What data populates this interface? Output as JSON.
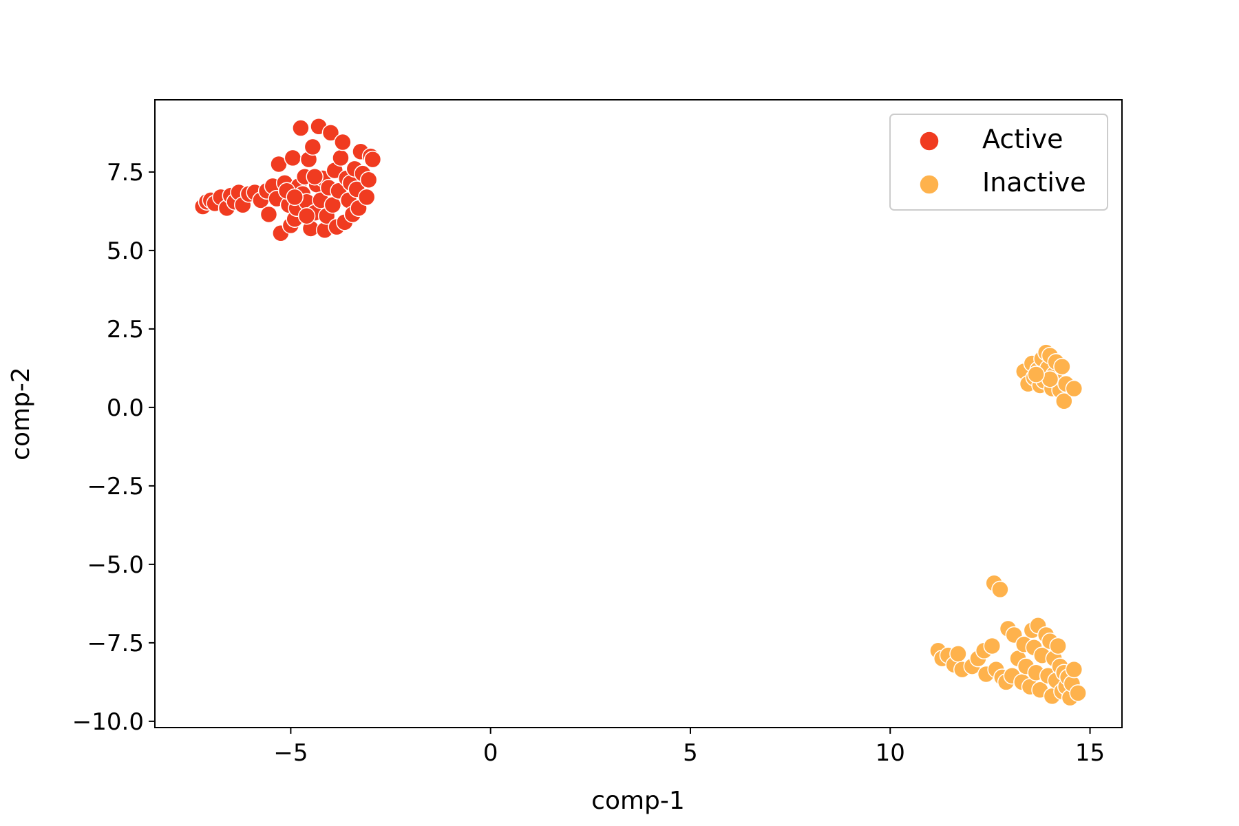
{
  "chart_data": {
    "type": "scatter",
    "title": "",
    "xlabel": "comp-1",
    "ylabel": "comp-2",
    "xlim": [
      -8.4,
      15.8
    ],
    "ylim": [
      -10.2,
      9.8
    ],
    "xticks": [
      -5,
      0,
      5,
      10,
      15
    ],
    "xtick_labels": [
      "−5",
      "0",
      "5",
      "10",
      "15"
    ],
    "yticks": [
      -10.0,
      -7.5,
      -5.0,
      -2.5,
      0.0,
      2.5,
      5.0,
      7.5
    ],
    "ytick_labels": [
      "−10.0",
      "−7.5",
      "−5.0",
      "−2.5",
      "0.0",
      "2.5",
      "5.0",
      "7.5"
    ],
    "grid": false,
    "legend_position": "top-right",
    "series": [
      {
        "name": "Active",
        "color": "#f03b20",
        "points": [
          [
            -7.2,
            6.4
          ],
          [
            -7.1,
            6.55
          ],
          [
            -7.0,
            6.6
          ],
          [
            -6.9,
            6.5
          ],
          [
            -6.75,
            6.7
          ],
          [
            -6.6,
            6.35
          ],
          [
            -6.5,
            6.75
          ],
          [
            -6.4,
            6.55
          ],
          [
            -6.3,
            6.85
          ],
          [
            -6.2,
            6.45
          ],
          [
            -6.05,
            6.8
          ],
          [
            -5.9,
            6.85
          ],
          [
            -5.75,
            6.6
          ],
          [
            -5.6,
            6.9
          ],
          [
            -5.55,
            6.15
          ],
          [
            -5.45,
            7.05
          ],
          [
            -5.35,
            6.65
          ],
          [
            -5.3,
            7.75
          ],
          [
            -5.25,
            5.55
          ],
          [
            -5.15,
            7.15
          ],
          [
            -5.05,
            6.45
          ],
          [
            -5.0,
            5.8
          ],
          [
            -4.95,
            7.95
          ],
          [
            -4.9,
            6.0
          ],
          [
            -4.85,
            6.35
          ],
          [
            -4.8,
            7.05
          ],
          [
            -4.75,
            8.9
          ],
          [
            -4.7,
            6.8
          ],
          [
            -4.65,
            7.35
          ],
          [
            -4.6,
            6.55
          ],
          [
            -4.55,
            7.9
          ],
          [
            -4.5,
            5.7
          ],
          [
            -4.45,
            8.3
          ],
          [
            -4.4,
            6.2
          ],
          [
            -4.35,
            7.1
          ],
          [
            -4.3,
            8.95
          ],
          [
            -4.25,
            6.6
          ],
          [
            -4.2,
            7.3
          ],
          [
            -4.15,
            5.65
          ],
          [
            -4.1,
            6.1
          ],
          [
            -4.05,
            7.0
          ],
          [
            -4.0,
            8.75
          ],
          [
            -3.95,
            6.45
          ],
          [
            -3.9,
            7.55
          ],
          [
            -3.85,
            5.75
          ],
          [
            -3.8,
            6.9
          ],
          [
            -3.75,
            7.95
          ],
          [
            -3.7,
            8.45
          ],
          [
            -3.65,
            5.9
          ],
          [
            -3.6,
            7.3
          ],
          [
            -3.55,
            6.6
          ],
          [
            -3.5,
            7.15
          ],
          [
            -3.45,
            6.15
          ],
          [
            -3.4,
            7.6
          ],
          [
            -3.35,
            6.95
          ],
          [
            -3.3,
            6.35
          ],
          [
            -3.25,
            8.15
          ],
          [
            -3.2,
            7.45
          ],
          [
            -3.1,
            6.7
          ],
          [
            -3.05,
            7.25
          ],
          [
            -3.0,
            8.0
          ],
          [
            -2.95,
            7.9
          ],
          [
            -4.4,
            7.35
          ],
          [
            -4.6,
            6.1
          ],
          [
            -5.1,
            6.9
          ],
          [
            -4.9,
            6.7
          ]
        ]
      },
      {
        "name": "Inactive",
        "color": "#feb24c",
        "points": [
          [
            13.35,
            1.15
          ],
          [
            13.45,
            0.75
          ],
          [
            13.55,
            1.4
          ],
          [
            13.6,
            0.95
          ],
          [
            13.7,
            1.2
          ],
          [
            13.75,
            0.7
          ],
          [
            13.8,
            1.55
          ],
          [
            13.85,
            0.85
          ],
          [
            13.9,
            1.75
          ],
          [
            13.95,
            1.25
          ],
          [
            14.0,
            1.65
          ],
          [
            14.05,
            0.6
          ],
          [
            14.1,
            1.05
          ],
          [
            14.15,
            1.45
          ],
          [
            14.2,
            0.8
          ],
          [
            14.25,
            0.55
          ],
          [
            14.3,
            1.3
          ],
          [
            14.35,
            0.2
          ],
          [
            14.4,
            0.75
          ],
          [
            14.6,
            0.6
          ],
          [
            14.0,
            0.9
          ],
          [
            13.65,
            1.05
          ],
          [
            12.6,
            -5.6
          ],
          [
            12.75,
            -5.8
          ],
          [
            11.2,
            -7.75
          ],
          [
            11.3,
            -8.0
          ],
          [
            11.45,
            -7.9
          ],
          [
            11.6,
            -8.2
          ],
          [
            11.7,
            -7.85
          ],
          [
            11.8,
            -8.35
          ],
          [
            12.05,
            -8.25
          ],
          [
            12.2,
            -8.0
          ],
          [
            12.35,
            -7.75
          ],
          [
            12.4,
            -8.5
          ],
          [
            12.55,
            -7.6
          ],
          [
            12.65,
            -8.35
          ],
          [
            12.8,
            -8.6
          ],
          [
            12.9,
            -8.75
          ],
          [
            12.95,
            -7.05
          ],
          [
            13.05,
            -8.55
          ],
          [
            13.1,
            -7.25
          ],
          [
            13.2,
            -8.0
          ],
          [
            13.3,
            -8.75
          ],
          [
            13.35,
            -7.55
          ],
          [
            13.4,
            -8.25
          ],
          [
            13.5,
            -8.9
          ],
          [
            13.55,
            -7.1
          ],
          [
            13.6,
            -7.65
          ],
          [
            13.65,
            -8.45
          ],
          [
            13.7,
            -6.95
          ],
          [
            13.75,
            -9.0
          ],
          [
            13.8,
            -7.9
          ],
          [
            13.9,
            -7.25
          ],
          [
            13.95,
            -8.55
          ],
          [
            14.0,
            -7.45
          ],
          [
            14.05,
            -9.2
          ],
          [
            14.1,
            -8.0
          ],
          [
            14.15,
            -8.7
          ],
          [
            14.2,
            -7.6
          ],
          [
            14.25,
            -8.25
          ],
          [
            14.3,
            -9.05
          ],
          [
            14.35,
            -8.45
          ],
          [
            14.4,
            -8.9
          ],
          [
            14.45,
            -8.6
          ],
          [
            14.5,
            -9.25
          ],
          [
            14.55,
            -8.8
          ],
          [
            14.6,
            -8.35
          ],
          [
            14.7,
            -9.1
          ]
        ]
      }
    ]
  }
}
